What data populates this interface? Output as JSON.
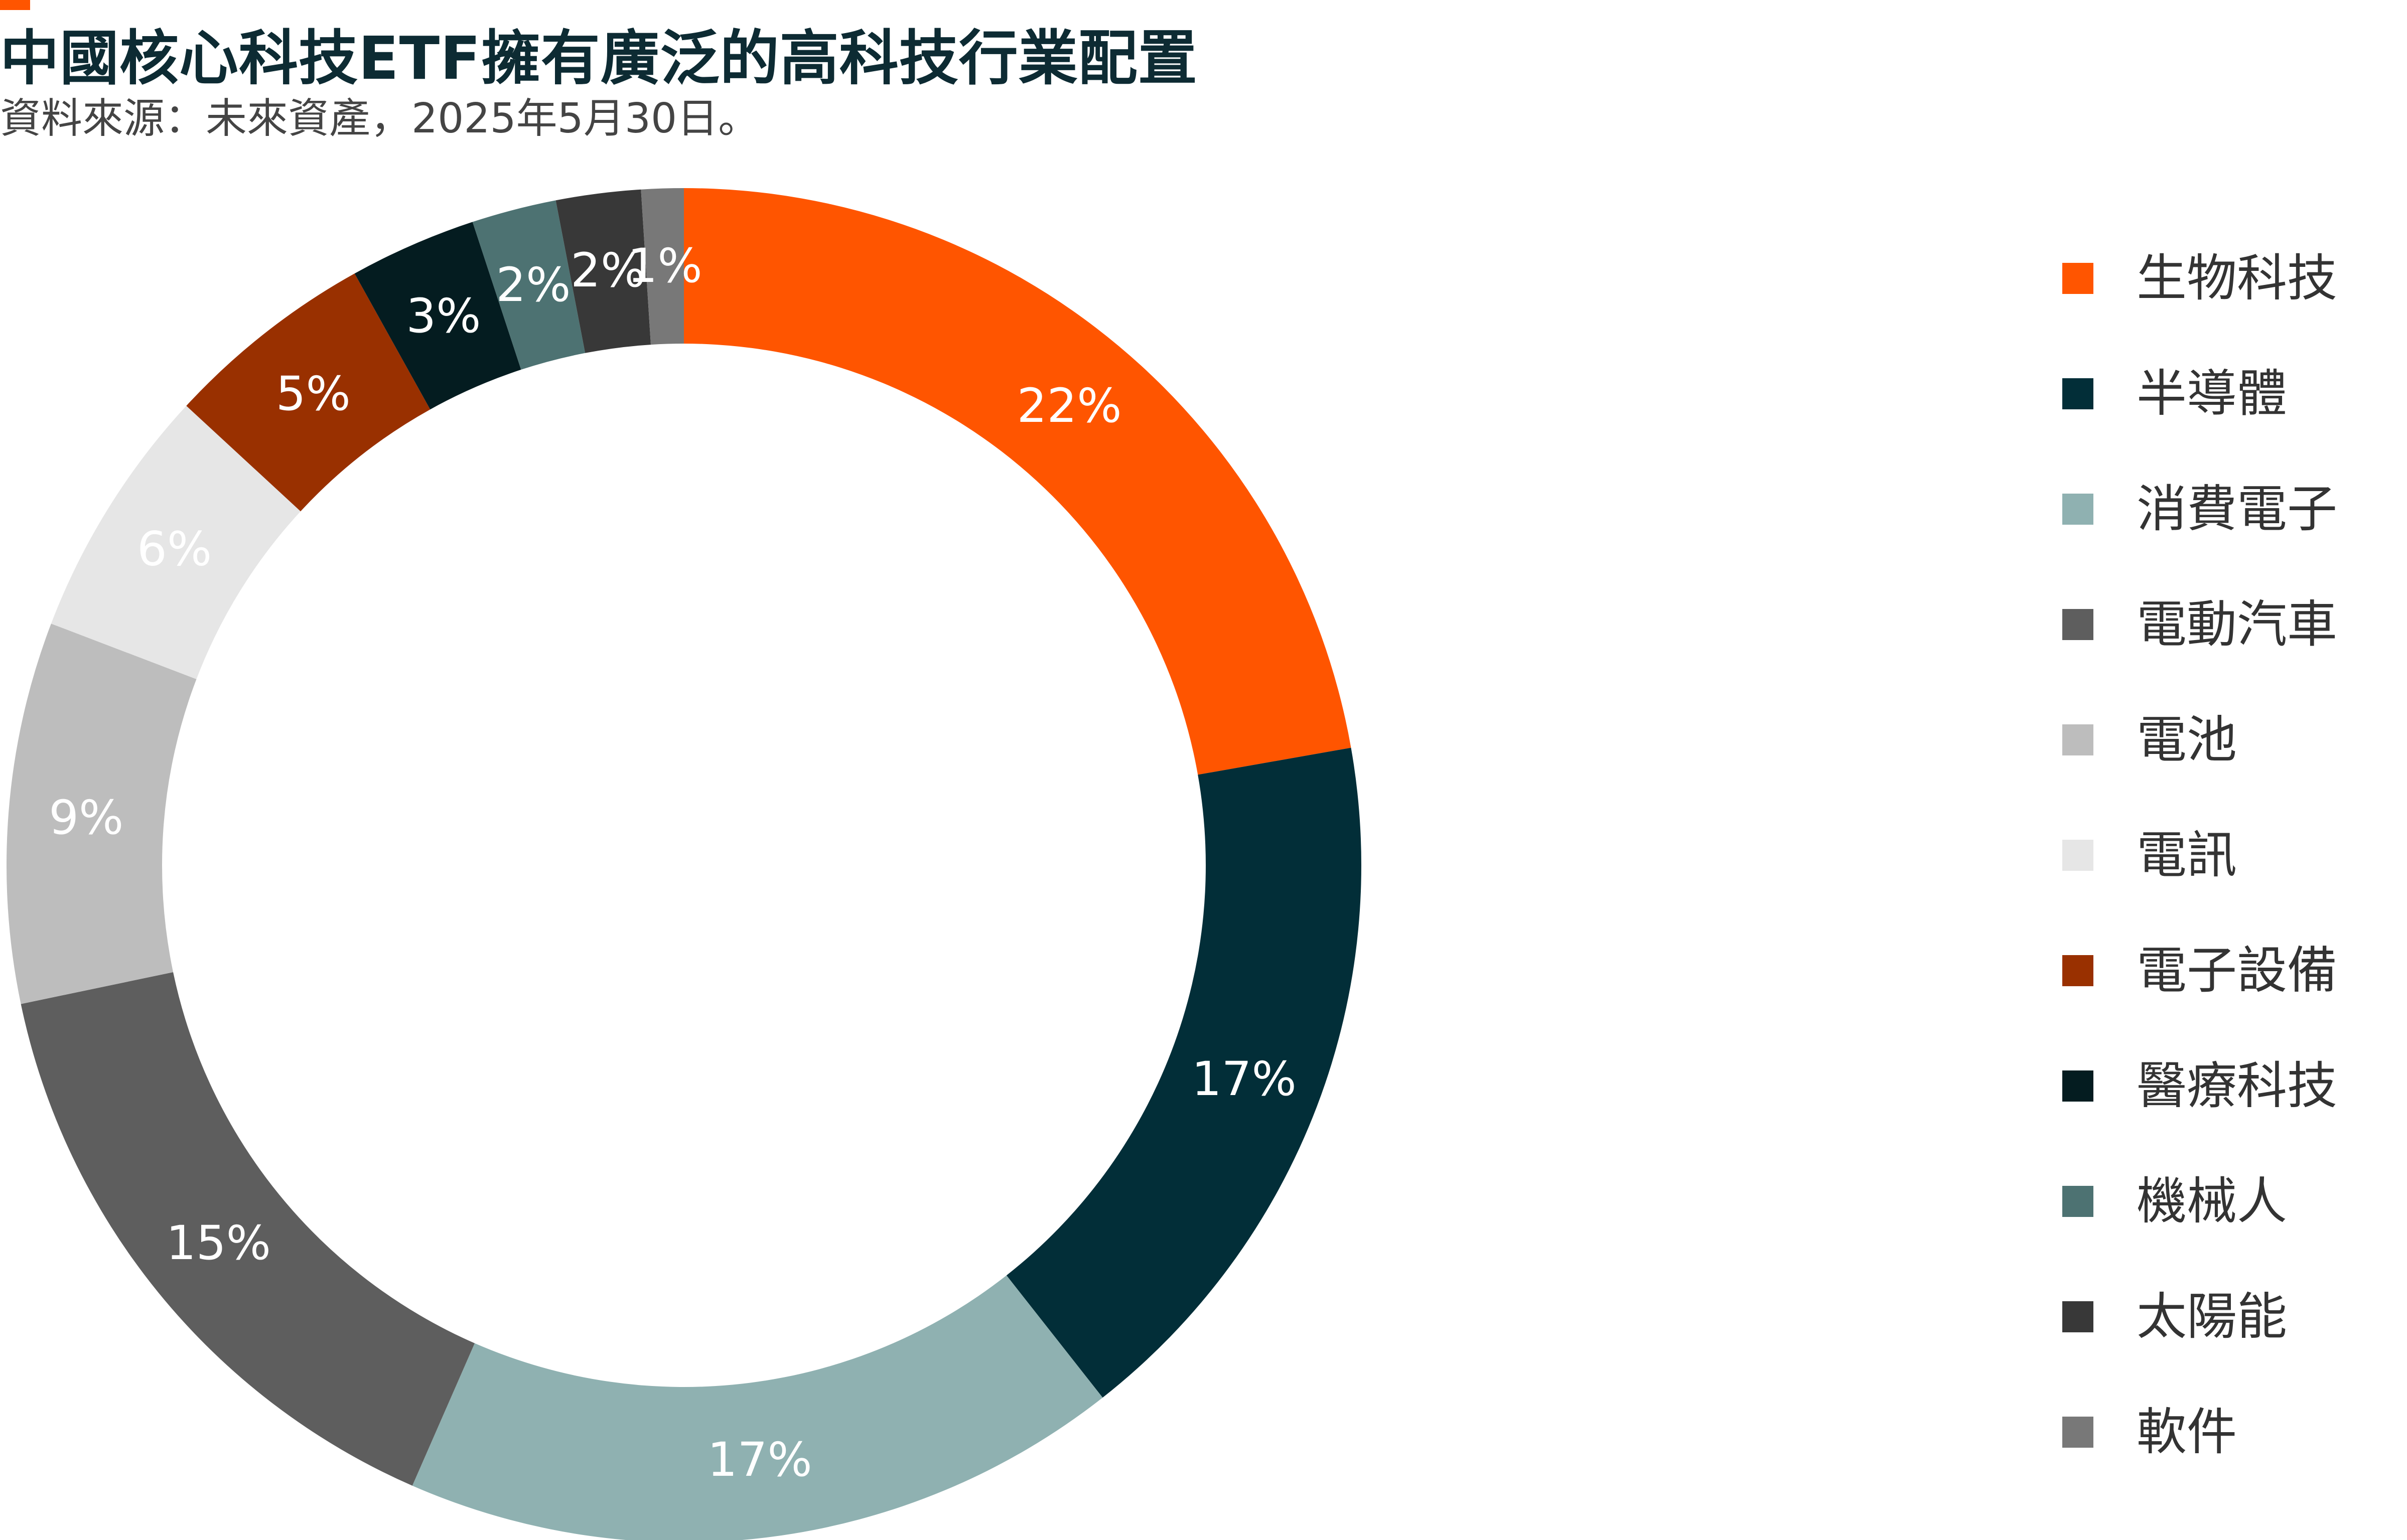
{
  "header": {
    "title": "中國核心科技ETF擁有廣泛的高科技行業配置",
    "subtitle": "資料來源：未來資產，2025年5月30日。"
  },
  "colors": {
    "accent": "#ff5500"
  },
  "chart_data": {
    "type": "pie",
    "variant": "donut",
    "legend_position": "right",
    "categories": [
      "生物科技",
      "半導體",
      "消費電子",
      "電動汽車",
      "電池",
      "電訊",
      "電子設備",
      "醫療科技",
      "機械人",
      "太陽能",
      "軟件"
    ],
    "values": [
      22,
      17,
      17,
      15,
      9,
      6,
      5,
      3,
      2,
      2,
      1
    ],
    "labels": [
      "22%",
      "17%",
      "17%",
      "15%",
      "9%",
      "6%",
      "5%",
      "3%",
      "2%",
      "2%",
      "1%"
    ],
    "colors": [
      "#ff5500",
      "#022e38",
      "#8fb1b1",
      "#5e5e5e",
      "#bdbdbd",
      "#e6e6e6",
      "#993000",
      "#041c20",
      "#4d7272",
      "#383838",
      "#787878"
    ],
    "label_colors": [
      "#ffffff",
      "#ffffff",
      "#ffffff",
      "#ffffff",
      "#ffffff",
      "#ffffff",
      "#ffffff",
      "#ffffff",
      "#ffffff",
      "#ffffff",
      "#ffffff"
    ],
    "start_angle_deg": 0,
    "direction": "clockwise"
  }
}
